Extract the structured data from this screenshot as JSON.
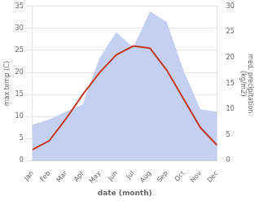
{
  "chart_data": {
    "type": "line",
    "xlabel": "date (month)",
    "ylabel": "max temp (C)",
    "y2label": "med. precipitation\n(kg/m2)",
    "categories": [
      "Jan",
      "Feb",
      "Mar",
      "Apr",
      "May",
      "Jun",
      "Jul",
      "Aug",
      "Sep",
      "Oct",
      "Nov",
      "Dec"
    ],
    "series": [
      {
        "type": "area",
        "color": "#c5d0f0",
        "axis": "y2",
        "values": [
          7.0,
          8.0,
          9.5,
          11.0,
          20.0,
          25.0,
          22.0,
          29.0,
          27.0,
          17.5,
          10.0,
          9.5
        ]
      },
      {
        "type": "line",
        "color": "#c0392b",
        "values": [
          2.5,
          4.5,
          9.5,
          15.0,
          20.0,
          24.0,
          26.0,
          25.5,
          20.5,
          14.0,
          7.5,
          3.5
        ]
      }
    ],
    "ylim": [
      0,
      35
    ],
    "yticks": [
      0,
      5,
      10,
      15,
      20,
      25,
      30,
      35
    ],
    "y2lim": [
      0,
      30
    ],
    "y2ticks": [
      0,
      5,
      10,
      15,
      20,
      25,
      30
    ],
    "grid": true
  }
}
